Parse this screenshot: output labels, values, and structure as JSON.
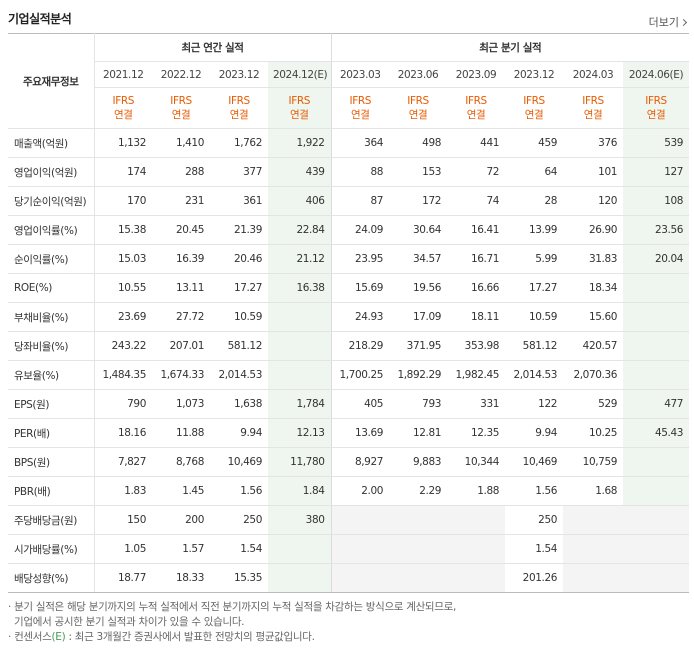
{
  "title": "기업실적분석",
  "more_label": "더보기",
  "corner_label": "주요재무정보",
  "group_annual": "최근 연간 실적",
  "group_quarter": "최근 분기 실적",
  "periods": [
    "2021.12",
    "2022.12",
    "2023.12",
    "2024.12(E)",
    "2023.03",
    "2023.06",
    "2023.09",
    "2023.12",
    "2024.03",
    "2024.06(E)"
  ],
  "ifrs_top": "IFRS",
  "ifrs_bottom": "연결",
  "rows": [
    {
      "label": "매출액(억원)",
      "values": [
        "1,132",
        "1,410",
        "1,762",
        "1,922",
        "364",
        "498",
        "441",
        "459",
        "376",
        "539"
      ]
    },
    {
      "label": "영업이익(억원)",
      "values": [
        "174",
        "288",
        "377",
        "439",
        "88",
        "153",
        "72",
        "64",
        "101",
        "127"
      ]
    },
    {
      "label": "당기순이익(억원)",
      "values": [
        "170",
        "231",
        "361",
        "406",
        "87",
        "172",
        "74",
        "28",
        "120",
        "108"
      ]
    },
    {
      "label": "영업이익률(%)",
      "values": [
        "15.38",
        "20.45",
        "21.39",
        "22.84",
        "24.09",
        "30.64",
        "16.41",
        "13.99",
        "26.90",
        "23.56"
      ]
    },
    {
      "label": "순이익률(%)",
      "values": [
        "15.03",
        "16.39",
        "20.46",
        "21.12",
        "23.95",
        "34.57",
        "16.71",
        "5.99",
        "31.83",
        "20.04"
      ]
    },
    {
      "label": "ROE(%)",
      "values": [
        "10.55",
        "13.11",
        "17.27",
        "16.38",
        "15.69",
        "19.56",
        "16.66",
        "17.27",
        "18.34",
        ""
      ]
    },
    {
      "label": "부채비율(%)",
      "values": [
        "23.69",
        "27.72",
        "10.59",
        "",
        "24.93",
        "17.09",
        "18.11",
        "10.59",
        "15.60",
        ""
      ]
    },
    {
      "label": "당좌비율(%)",
      "values": [
        "243.22",
        "207.01",
        "581.12",
        "",
        "218.29",
        "371.95",
        "353.98",
        "581.12",
        "420.57",
        ""
      ]
    },
    {
      "label": "유보율(%)",
      "values": [
        "1,484.35",
        "1,674.33",
        "2,014.53",
        "",
        "1,700.25",
        "1,892.29",
        "1,982.45",
        "2,014.53",
        "2,070.36",
        ""
      ]
    },
    {
      "label": "EPS(원)",
      "values": [
        "790",
        "1,073",
        "1,638",
        "1,784",
        "405",
        "793",
        "331",
        "122",
        "529",
        "477"
      ]
    },
    {
      "label": "PER(배)",
      "values": [
        "18.16",
        "11.88",
        "9.94",
        "12.13",
        "13.69",
        "12.81",
        "12.35",
        "9.94",
        "10.25",
        "45.43"
      ]
    },
    {
      "label": "BPS(원)",
      "values": [
        "7,827",
        "8,768",
        "10,469",
        "11,780",
        "8,927",
        "9,883",
        "10,344",
        "10,469",
        "10,759",
        ""
      ]
    },
    {
      "label": "PBR(배)",
      "values": [
        "1.83",
        "1.45",
        "1.56",
        "1.84",
        "2.00",
        "2.29",
        "1.88",
        "1.56",
        "1.68",
        ""
      ]
    },
    {
      "label": "주당배당금(원)",
      "values": [
        "150",
        "200",
        "250",
        "380",
        "",
        "",
        "",
        "250",
        "",
        ""
      ]
    },
    {
      "label": "시가배당률(%)",
      "values": [
        "1.05",
        "1.57",
        "1.54",
        "",
        "",
        "",
        "",
        "1.54",
        "",
        ""
      ]
    },
    {
      "label": "배당성향(%)",
      "values": [
        "18.77",
        "18.33",
        "15.35",
        "",
        "",
        "",
        "",
        "201.26",
        "",
        ""
      ]
    }
  ],
  "notes": {
    "line1": "· 분기 실적은 해당 분기까지의 누적 실적에서 직전 분기까지의 누적 실적을 차감하는 방식으로 계산되므로,",
    "line2": "기업에서 공시한 분기 실적과 차이가 있을 수 있습니다.",
    "line3_prefix": "· 컨센서스",
    "line3_mark": "(E)",
    "line3_suffix": " : 최근 3개월간 증권사에서 발표한 전망치의 평균값입니다."
  }
}
